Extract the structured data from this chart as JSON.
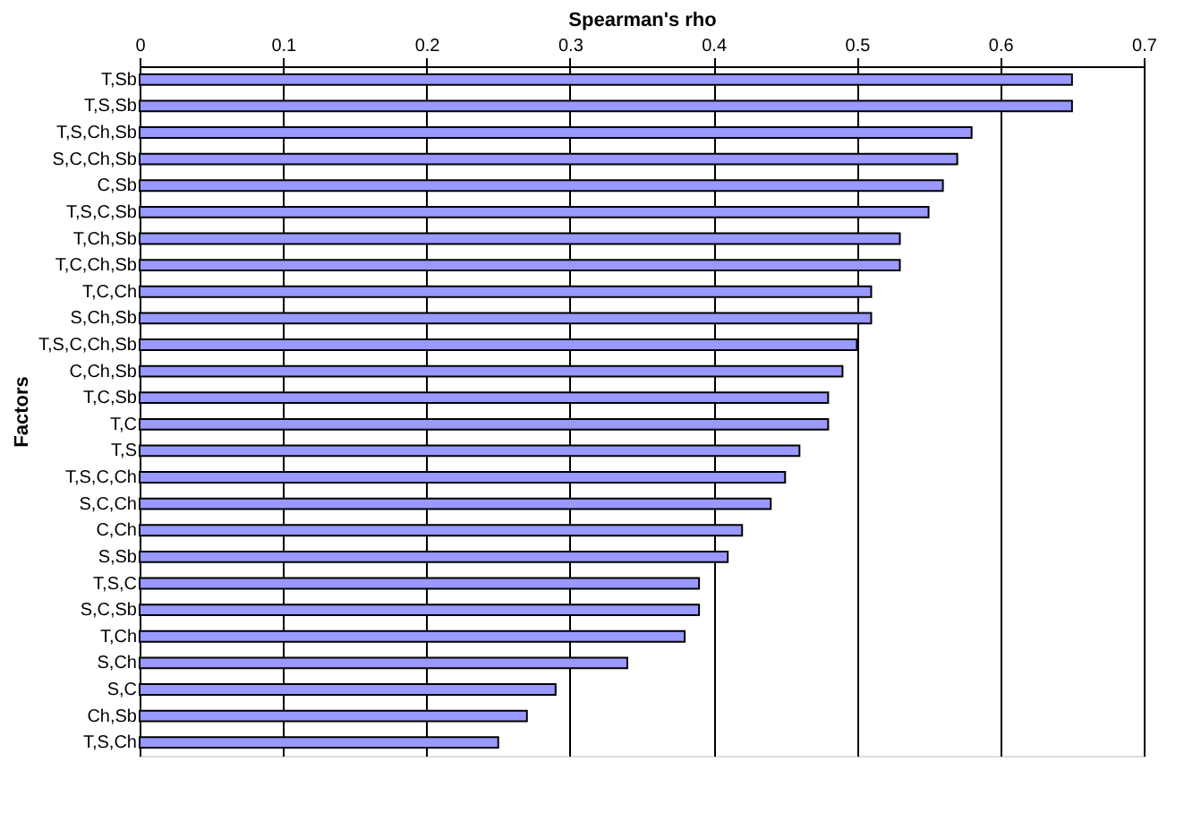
{
  "chart_data": {
    "type": "bar",
    "orientation": "horizontal",
    "xlabel": "Spearman's rho",
    "ylabel": "Factors",
    "categories": [
      "T,Sb",
      "T,S,Sb",
      "T,S,Ch,Sb",
      "S,C,Ch,Sb",
      "C,Sb",
      "T,S,C,Sb",
      "T,Ch,Sb",
      "T,C,Ch,Sb",
      "T,C,Ch",
      "S,Ch,Sb",
      "T,S,C,Ch,Sb",
      "C,Ch,Sb",
      "T,C,Sb",
      "T,C",
      "T,S",
      "T,S,C,Ch",
      "S,C,Ch",
      "C,Ch",
      "S,Sb",
      "T,S,C",
      "S,C,Sb",
      "T,Ch",
      "S,Ch",
      "S,C",
      "Ch,Sb",
      "T,S,Ch"
    ],
    "values": [
      0.65,
      0.65,
      0.58,
      0.57,
      0.56,
      0.55,
      0.53,
      0.53,
      0.51,
      0.51,
      0.5,
      0.49,
      0.48,
      0.48,
      0.46,
      0.45,
      0.44,
      0.42,
      0.41,
      0.39,
      0.39,
      0.38,
      0.34,
      0.29,
      0.27,
      0.25
    ],
    "color": "#9999ff",
    "xlim": [
      0,
      0.7
    ],
    "xticks": [
      0,
      0.1,
      0.2,
      0.3,
      0.4,
      0.5,
      0.6,
      0.7
    ],
    "grid": "x"
  }
}
